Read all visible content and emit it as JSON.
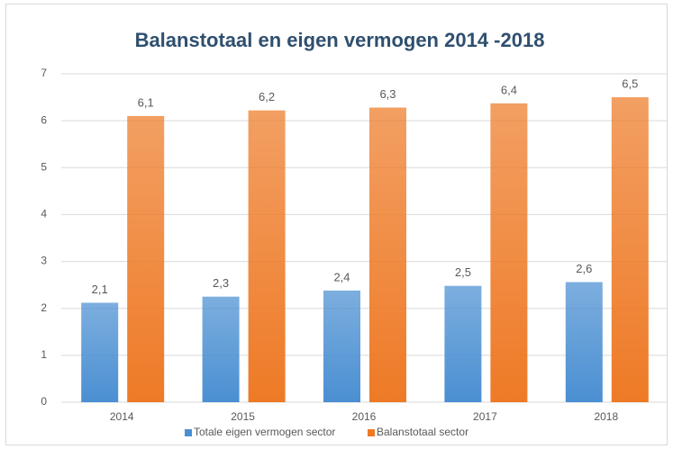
{
  "chart_data": {
    "type": "bar",
    "title": "Balanstotaal  en eigen vermogen 2014 -2018",
    "categories": [
      "2014",
      "2015",
      "2016",
      "2017",
      "2018"
    ],
    "series": [
      {
        "name": "Totale eigen vermogen sector",
        "color": "#4a8fd2",
        "values": [
          2.12,
          2.25,
          2.38,
          2.48,
          2.56
        ],
        "value_labels": [
          "2,1",
          "2,3",
          "2,4",
          "2,5",
          "2,6"
        ]
      },
      {
        "name": "Balanstotaal sector",
        "color": "#ee7a26",
        "values": [
          6.1,
          6.22,
          6.28,
          6.37,
          6.5
        ],
        "value_labels": [
          "6,1",
          "6,2",
          "6,3",
          "6,4",
          "6,5"
        ]
      }
    ],
    "ylim": [
      0,
      7
    ],
    "yticks": [
      0,
      1,
      2,
      3,
      4,
      5,
      6,
      7
    ],
    "grid": true,
    "legend": "bottom"
  }
}
